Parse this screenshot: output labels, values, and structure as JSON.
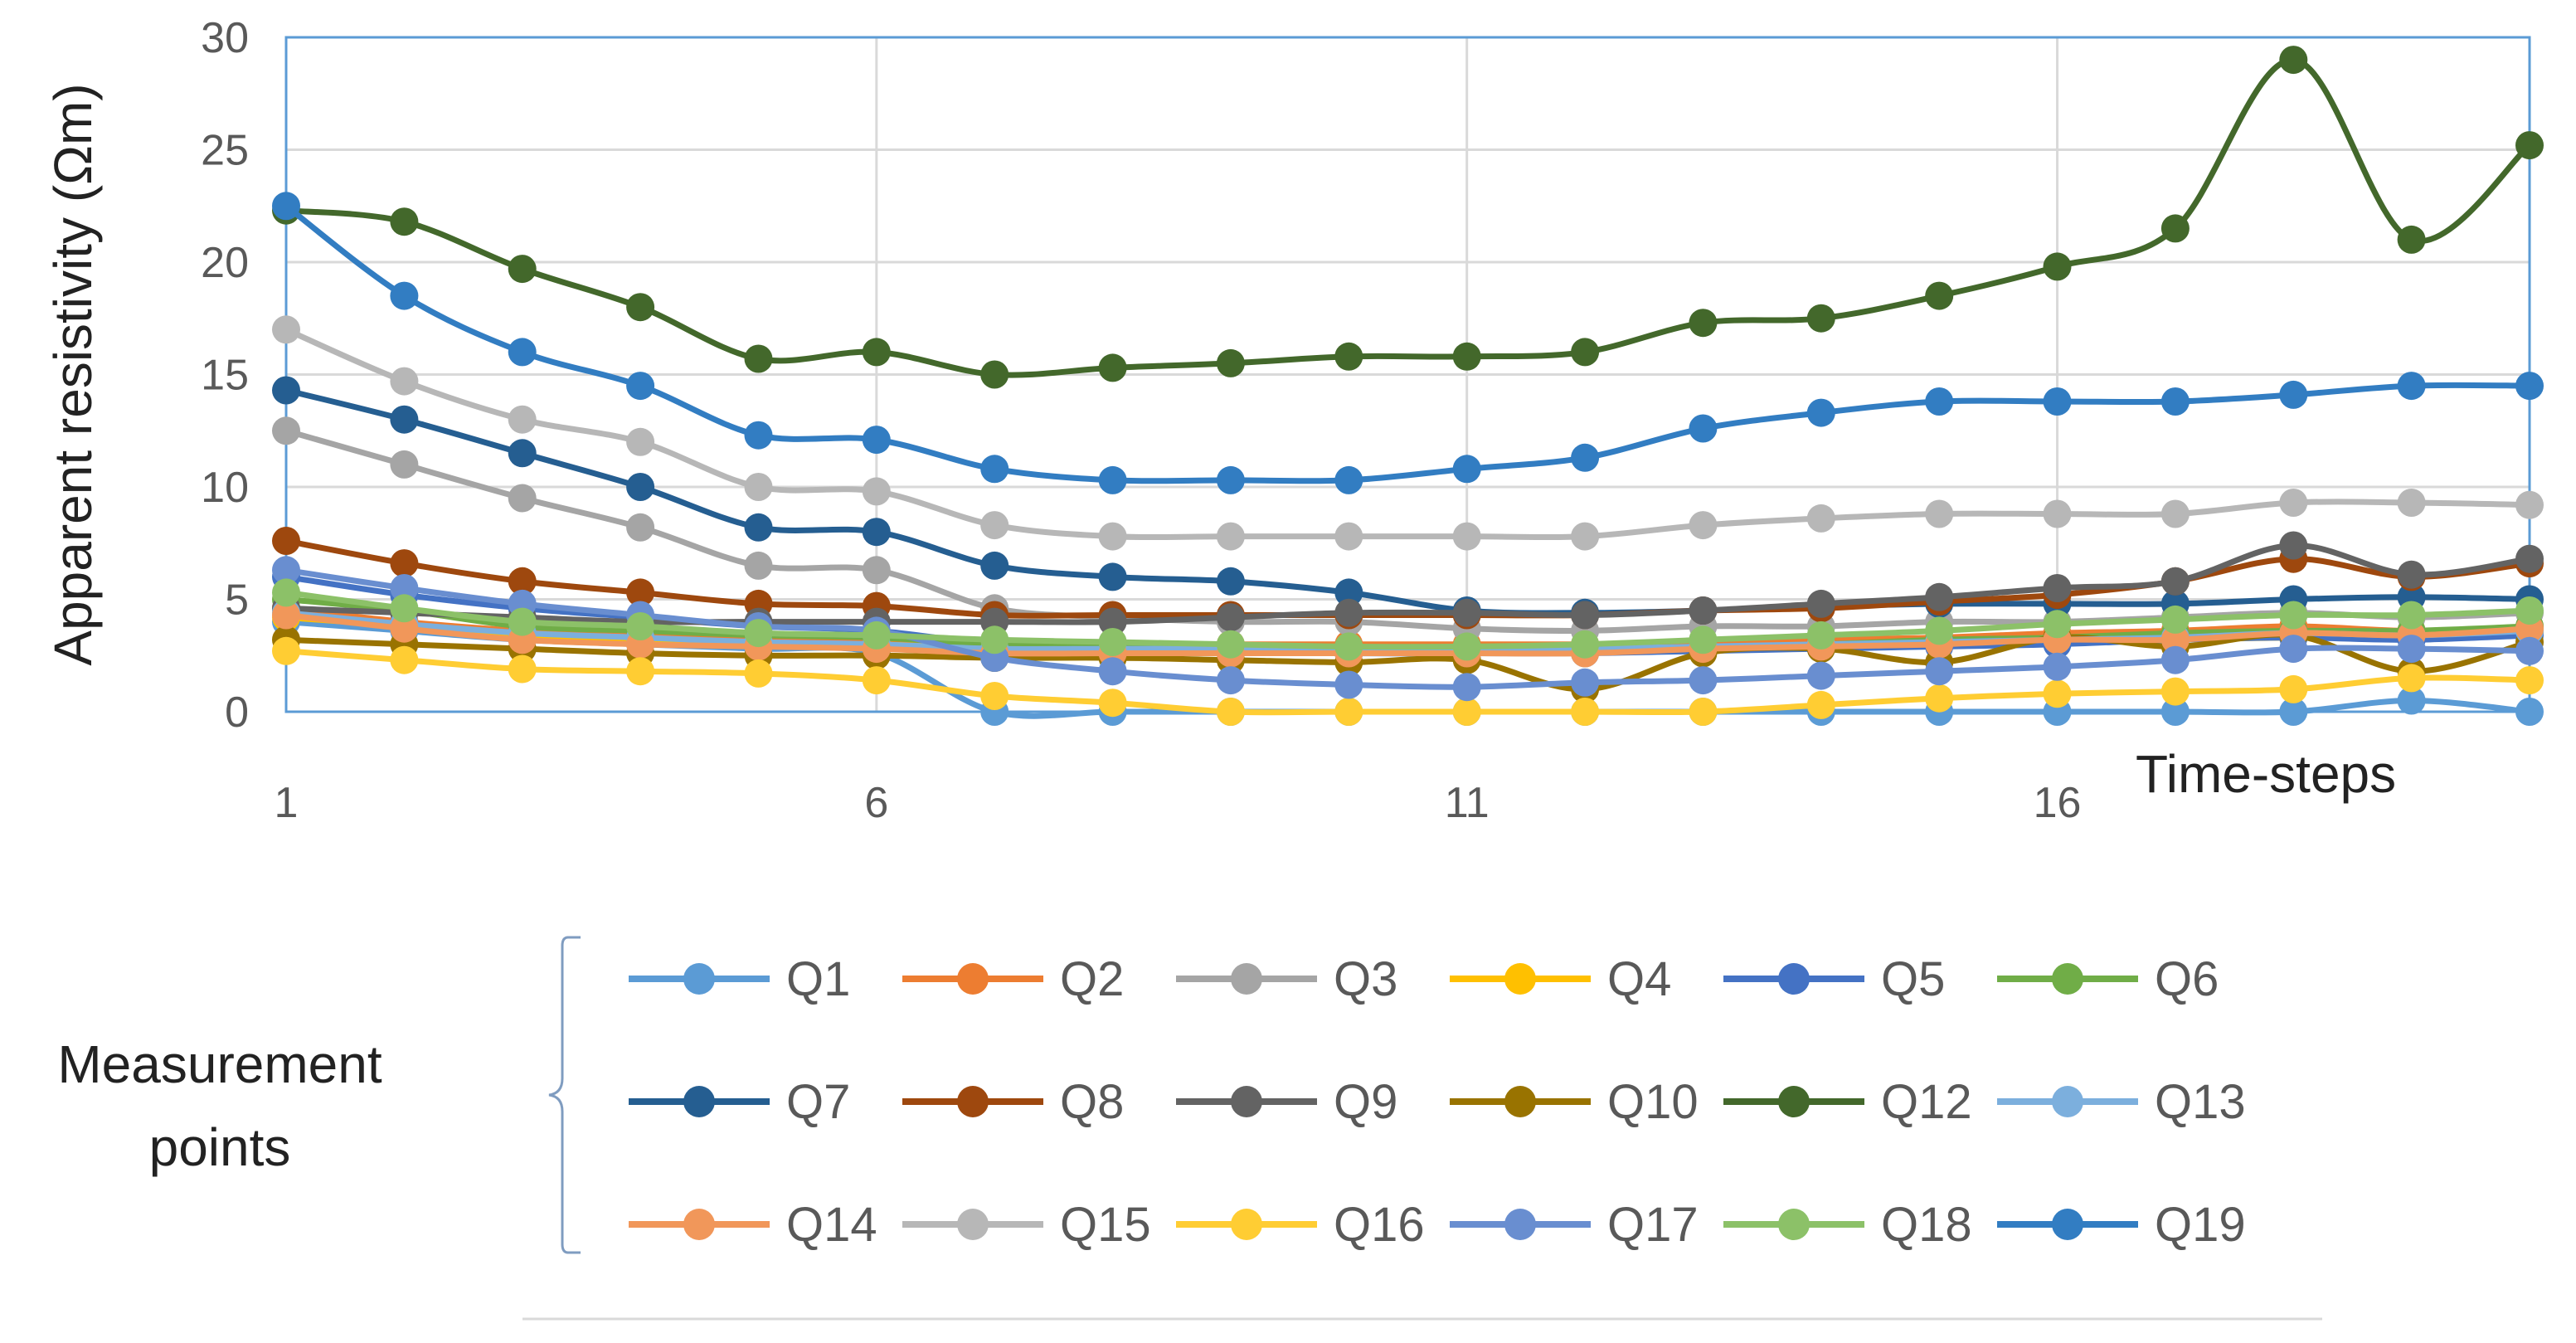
{
  "chart_data": {
    "type": "line",
    "title": "",
    "xlabel": "Time-steps",
    "ylabel": "Apparent resistivity (Ωm)",
    "x": [
      1,
      2,
      3,
      4,
      5,
      6,
      7,
      8,
      9,
      10,
      11,
      12,
      13,
      14,
      15,
      16,
      17,
      18,
      19,
      20
    ],
    "xticks": [
      1,
      6,
      11,
      16
    ],
    "yticks": [
      0,
      5,
      10,
      15,
      20,
      25,
      30
    ],
    "xlim": [
      1,
      20
    ],
    "ylim": [
      0,
      30
    ],
    "grid": true,
    "legend_title": "Measurement points",
    "legend_position": "bottom",
    "series": [
      {
        "name": "Q1",
        "color": "#5B9BD5",
        "values": [
          4.0,
          3.6,
          3.2,
          3.0,
          2.8,
          2.6,
          0.0,
          0.0,
          0.0,
          0.0,
          0.0,
          0.0,
          0.0,
          0.0,
          0.0,
          0.0,
          0.0,
          0.0,
          0.5,
          0.0
        ]
      },
      {
        "name": "Q2",
        "color": "#ED7D31",
        "values": [
          4.6,
          4.0,
          3.6,
          3.4,
          3.2,
          3.2,
          3.0,
          3.0,
          3.0,
          3.0,
          3.0,
          3.0,
          3.0,
          3.2,
          3.3,
          3.5,
          3.6,
          3.8,
          3.6,
          3.8
        ]
      },
      {
        "name": "Q3",
        "color": "#A5A5A5",
        "values": [
          12.5,
          11.0,
          9.5,
          8.2,
          6.5,
          6.3,
          4.6,
          4.2,
          4.0,
          4.0,
          3.7,
          3.6,
          3.8,
          3.8,
          4.0,
          4.0,
          4.2,
          4.4,
          4.2,
          4.4
        ]
      },
      {
        "name": "Q4",
        "color": "#FFC000",
        "values": [
          4.2,
          3.8,
          3.3,
          3.2,
          3.0,
          3.0,
          2.8,
          2.8,
          2.8,
          2.7,
          2.7,
          2.7,
          2.8,
          2.9,
          3.0,
          3.1,
          3.2,
          3.3,
          3.3,
          3.5
        ]
      },
      {
        "name": "Q5",
        "color": "#4472C4",
        "values": [
          6.0,
          5.2,
          4.6,
          4.2,
          3.8,
          3.6,
          3.0,
          2.8,
          2.7,
          2.6,
          2.6,
          2.6,
          2.7,
          2.8,
          2.9,
          3.0,
          3.2,
          3.3,
          3.2,
          3.4
        ]
      },
      {
        "name": "Q6",
        "color": "#70AD47",
        "values": [
          5.0,
          4.5,
          3.8,
          3.6,
          3.4,
          3.3,
          3.0,
          3.0,
          2.9,
          2.8,
          2.8,
          2.8,
          2.9,
          3.0,
          3.2,
          3.3,
          3.5,
          3.6,
          3.6,
          3.8
        ]
      },
      {
        "name": "Q7",
        "color": "#255E91",
        "values": [
          14.3,
          13.0,
          11.5,
          10.0,
          8.2,
          8.0,
          6.5,
          6.0,
          5.8,
          5.3,
          4.5,
          4.4,
          4.5,
          4.7,
          4.8,
          4.8,
          4.8,
          5.0,
          5.1,
          5.0
        ]
      },
      {
        "name": "Q8",
        "color": "#9E480E",
        "values": [
          7.6,
          6.6,
          5.8,
          5.3,
          4.8,
          4.7,
          4.3,
          4.3,
          4.3,
          4.3,
          4.3,
          4.3,
          4.5,
          4.6,
          4.9,
          5.2,
          5.8,
          6.8,
          6.0,
          6.6
        ]
      },
      {
        "name": "Q9",
        "color": "#636363",
        "values": [
          4.6,
          4.4,
          4.2,
          4.0,
          4.0,
          4.0,
          4.0,
          4.0,
          4.2,
          4.4,
          4.4,
          4.3,
          4.5,
          4.8,
          5.1,
          5.5,
          5.8,
          7.4,
          6.1,
          6.8
        ]
      },
      {
        "name": "Q10",
        "color": "#997300",
        "values": [
          3.2,
          3.0,
          2.8,
          2.6,
          2.5,
          2.5,
          2.4,
          2.4,
          2.3,
          2.2,
          2.3,
          1.0,
          2.6,
          2.8,
          2.2,
          3.3,
          2.9,
          3.4,
          1.8,
          3.1
        ]
      },
      {
        "name": "Q12",
        "color": "#43682B",
        "values": [
          22.3,
          21.8,
          19.7,
          18.0,
          15.7,
          16.0,
          15.0,
          15.3,
          15.5,
          15.8,
          15.8,
          16.0,
          17.3,
          17.5,
          18.5,
          19.8,
          21.5,
          29.0,
          21.0,
          25.2
        ]
      },
      {
        "name": "Q13",
        "color": "#7CAFDD",
        "values": [
          4.4,
          3.9,
          3.5,
          3.3,
          3.1,
          3.0,
          2.8,
          2.8,
          2.8,
          2.8,
          2.8,
          2.8,
          2.9,
          3.0,
          3.1,
          3.2,
          3.3,
          3.5,
          3.4,
          3.6
        ]
      },
      {
        "name": "Q14",
        "color": "#F1975A",
        "values": [
          4.3,
          3.7,
          3.2,
          3.0,
          2.9,
          2.8,
          2.6,
          2.6,
          2.6,
          2.6,
          2.6,
          2.6,
          2.8,
          2.9,
          3.0,
          3.2,
          3.2,
          3.5,
          3.4,
          3.7
        ]
      },
      {
        "name": "Q15",
        "color": "#B7B7B7",
        "values": [
          17.0,
          14.7,
          13.0,
          12.0,
          10.0,
          9.8,
          8.3,
          7.8,
          7.8,
          7.8,
          7.8,
          7.8,
          8.3,
          8.6,
          8.8,
          8.8,
          8.8,
          9.3,
          9.3,
          9.2
        ]
      },
      {
        "name": "Q16",
        "color": "#FFCD33",
        "values": [
          2.7,
          2.3,
          1.9,
          1.8,
          1.7,
          1.4,
          0.7,
          0.4,
          0.0,
          0.0,
          0.0,
          0.0,
          0.0,
          0.3,
          0.6,
          0.8,
          0.9,
          1.0,
          1.5,
          1.4
        ]
      },
      {
        "name": "Q17",
        "color": "#698ED0",
        "values": [
          6.3,
          5.5,
          4.8,
          4.3,
          3.8,
          3.6,
          2.4,
          1.8,
          1.4,
          1.2,
          1.1,
          1.3,
          1.4,
          1.6,
          1.8,
          2.0,
          2.3,
          2.8,
          2.8,
          2.7
        ]
      },
      {
        "name": "Q18",
        "color": "#8CC168",
        "values": [
          5.3,
          4.6,
          4.0,
          3.8,
          3.5,
          3.4,
          3.2,
          3.1,
          3.0,
          2.9,
          2.9,
          3.0,
          3.2,
          3.4,
          3.6,
          3.9,
          4.1,
          4.3,
          4.3,
          4.5
        ]
      },
      {
        "name": "Q19",
        "color": "#327DC2",
        "values": [
          22.5,
          18.5,
          16.0,
          14.5,
          12.3,
          12.1,
          10.8,
          10.3,
          10.3,
          10.3,
          10.8,
          11.3,
          12.6,
          13.3,
          13.8,
          13.8,
          13.8,
          14.1,
          14.5,
          14.5
        ]
      }
    ]
  }
}
